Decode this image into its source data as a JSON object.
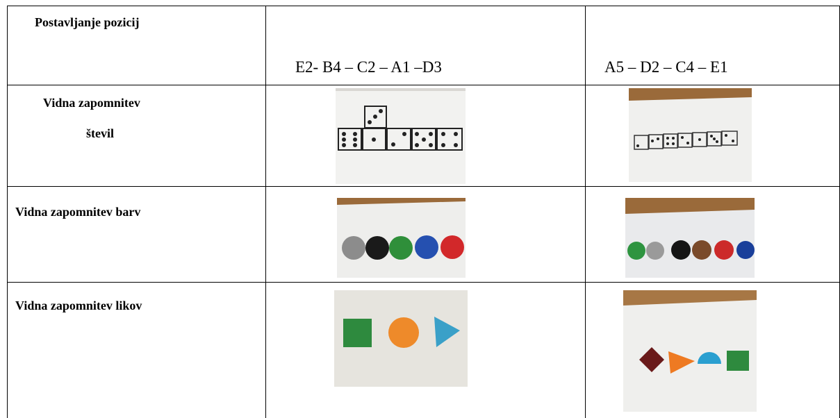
{
  "table": {
    "header": [
      "Postavljanje pozicij",
      "E2- B4 – C2 – A1 –D3",
      "A5 – D2 – C4 – E1"
    ],
    "rows": [
      [
        "Vidna zapomnitev",
        "števil"
      ],
      [
        "Vidna zapomnitev barv"
      ],
      [
        "Vidna zapomnitev likov"
      ]
    ]
  }
}
